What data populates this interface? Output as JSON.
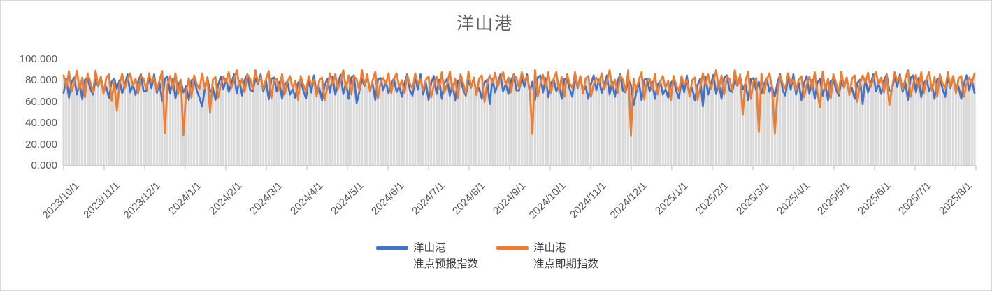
{
  "title": "洋山港",
  "colors": {
    "accent_blue": "#4472C4",
    "accent_orange": "#ED7D31",
    "drop_line": "#DADADA",
    "axis_line": "#C9C9C9",
    "tick_label": "#595959",
    "title_text": "#5F5F5F",
    "legend_text": "#404040",
    "border": "#D9D9D9"
  },
  "chart_data": {
    "type": "line",
    "title": "洋山港",
    "x_start": "2023/10/1",
    "x_step_days": 2,
    "n_points": 343,
    "ylim": [
      0,
      100
    ],
    "grid": "off",
    "drop_lines": true,
    "legend_position": "bottom",
    "y_tick_labels": [
      "100.000",
      "80.000",
      "60.000",
      "40.000",
      "20.000",
      "0.000"
    ],
    "x_tick_labels": [
      "2023/10/1",
      "2023/11/1",
      "2023/12/1",
      "2024/1/1",
      "2024/2/1",
      "2024/3/1",
      "2024/4/1",
      "2024/5/1",
      "2024/6/1",
      "2024/7/1",
      "2024/8/1",
      "2024/9/1",
      "2024/10/1",
      "2024/11/1",
      "2024/12/1",
      "2025/1/1",
      "2025/2/1",
      "2025/3/1",
      "2025/4/1",
      "2025/5/1",
      "2025/6/1",
      "2025/7/1",
      "2025/8/1"
    ],
    "series": [
      {
        "name_line1": "洋山港",
        "name_line2": "准点预报指数",
        "color": "#4472C4",
        "base": 74,
        "pattern20": [
          -4,
          7,
          -8,
          3,
          9,
          -6,
          2,
          -10,
          6,
          10,
          -3,
          -7,
          8,
          -1,
          11,
          -5,
          2,
          -12,
          5,
          9
        ],
        "pattern7": [
          -3,
          2,
          -4,
          4,
          0,
          -2,
          3
        ],
        "pattern7_scale": 0.5,
        "tile_offsets": [
          0,
          1,
          -1,
          2,
          -2,
          1,
          0,
          -1,
          2,
          0,
          1,
          -2,
          1,
          0,
          -1,
          2,
          0,
          1
        ],
        "clamp": [
          57,
          86
        ],
        "dips": [
          [
            52,
            56
          ],
          [
            110,
            59
          ],
          [
            160,
            58
          ],
          [
            214,
            57
          ],
          [
            240,
            56
          ],
          [
            300,
            58
          ]
        ]
      },
      {
        "name_line1": "洋山港",
        "name_line2": "准点即期指数",
        "color": "#ED7D31",
        "base": 78,
        "pattern20": [
          6,
          -3,
          9,
          -8,
          2,
          10,
          -5,
          4,
          -12,
          7,
          1,
          -7,
          10,
          -2,
          5,
          -9,
          3,
          8,
          -15,
          -1
        ],
        "pattern7": [
          2,
          -3,
          4,
          0,
          -4,
          3,
          -2
        ],
        "pattern7_scale": 0.5,
        "tile_offsets": [
          0,
          1,
          -1,
          2,
          -2,
          1,
          0,
          -1,
          2,
          0,
          1,
          -2,
          1,
          0,
          -1,
          2,
          0,
          1
        ],
        "clamp": [
          28,
          90
        ],
        "dips": [
          [
            20,
            52
          ],
          [
            38,
            31
          ],
          [
            45,
            29
          ],
          [
            55,
            50
          ],
          [
            176,
            30
          ],
          [
            213,
            28
          ],
          [
            255,
            48
          ],
          [
            261,
            32
          ],
          [
            267,
            30
          ],
          [
            284,
            55
          ],
          [
            310,
            57
          ]
        ]
      }
    ]
  }
}
